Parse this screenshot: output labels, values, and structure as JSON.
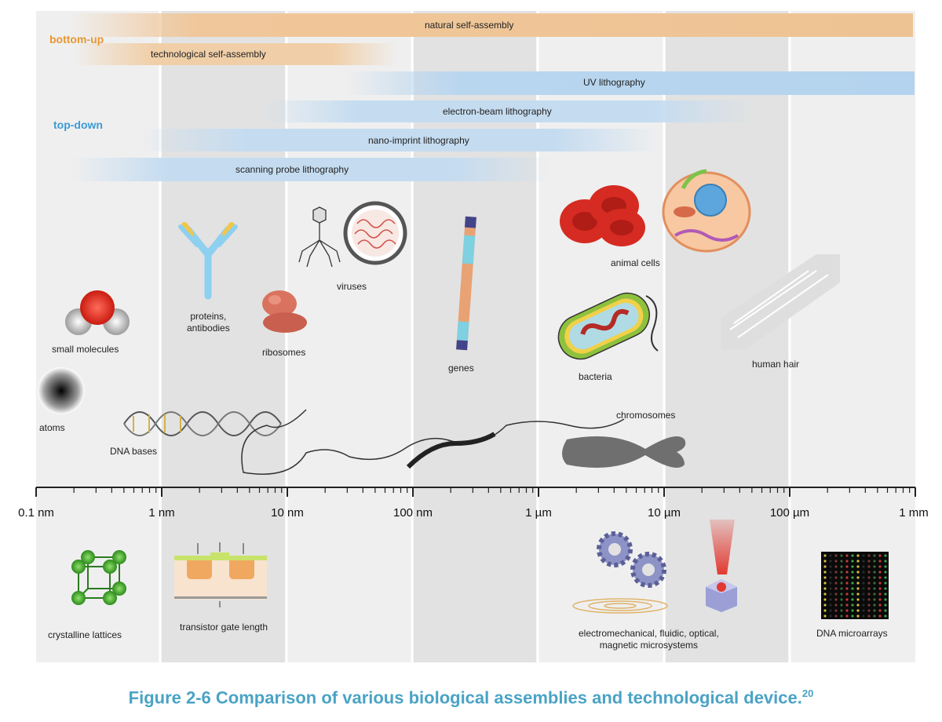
{
  "groups": {
    "bottom_up": {
      "label": "bottom-up",
      "color": "#e8972f"
    },
    "top_down": {
      "label": "top-down",
      "color": "#3c9bd6"
    }
  },
  "bars": [
    {
      "label": "natural self-assembly",
      "group": "bottom_up"
    },
    {
      "label": "technological self-assembly",
      "group": "bottom_up"
    },
    {
      "label": "UV lithography",
      "group": "top_down"
    },
    {
      "label": "electron-beam lithography",
      "group": "top_down"
    },
    {
      "label": "nano-imprint lithography",
      "group": "top_down"
    },
    {
      "label": "scanning probe lithography",
      "group": "top_down"
    }
  ],
  "biological": [
    {
      "label": "animal cells",
      "icon": "animal-cell-icon"
    },
    {
      "label": "small molecules",
      "icon": "water-molecule-icon"
    },
    {
      "label": "proteins,",
      "label2": "antibodies",
      "icon": "antibody-icon"
    },
    {
      "label": "ribosomes",
      "icon": "ribosome-icon"
    },
    {
      "label": "viruses",
      "icon": "virus-icon"
    },
    {
      "label": "genes",
      "icon": "gene-icon"
    },
    {
      "label": "bacteria",
      "icon": "bacterium-icon"
    },
    {
      "label": "human hair",
      "icon": "hair-icon"
    },
    {
      "label": "atoms",
      "icon": "atom-icon"
    },
    {
      "label": "DNA bases",
      "icon": "dna-helix-icon"
    },
    {
      "label": "chromosomes",
      "icon": "chromosome-icon"
    }
  ],
  "axis": {
    "ticks": [
      "0.1 nm",
      "1 nm",
      "10 nm",
      "100 nm",
      "1 µm",
      "10 µm",
      "100 µm",
      "1 mm"
    ],
    "scale": "log"
  },
  "technological": [
    {
      "label": "crystalline lattices",
      "icon": "crystal-lattice-icon"
    },
    {
      "label": "transistor gate length",
      "icon": "transistor-icon"
    },
    {
      "label": "electromechanical, fluidic, optical,",
      "label2": "magnetic microsystems",
      "icon": "gears-icon"
    },
    {
      "label": "DNA microarrays",
      "icon": "microarray-icon"
    }
  ],
  "caption": {
    "text": "Figure 2-6 Comparison of various biological assemblies and technological device.",
    "ref": "20"
  }
}
